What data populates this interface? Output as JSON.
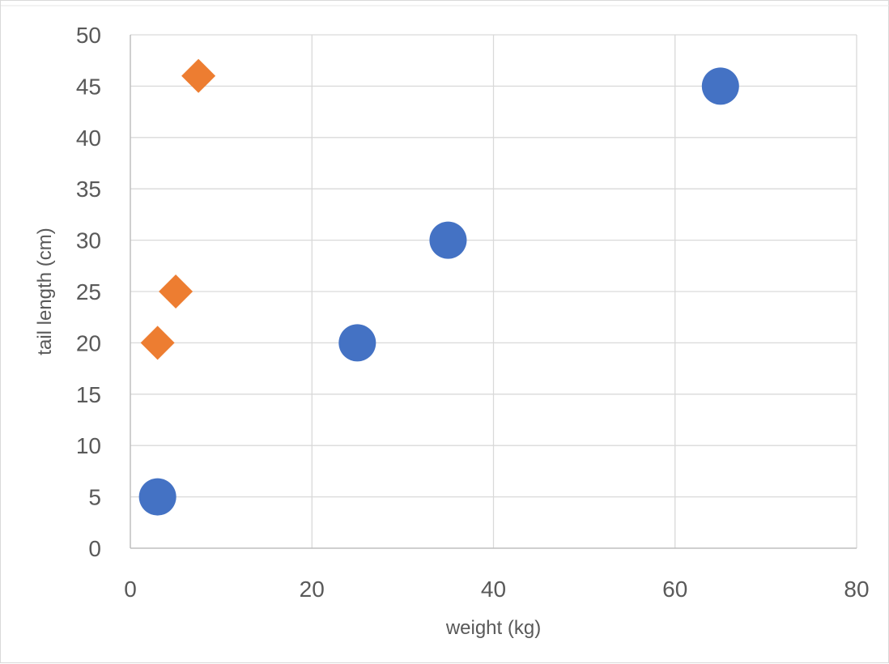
{
  "chart_data": {
    "type": "scatter",
    "title": "",
    "xlabel": "weight (kg)",
    "ylabel": "tail length (cm)",
    "xlim": [
      0,
      80
    ],
    "ylim": [
      0,
      50
    ],
    "xticks": [
      0,
      20,
      40,
      60,
      80
    ],
    "yticks": [
      0,
      5,
      10,
      15,
      20,
      25,
      30,
      35,
      40,
      45,
      50
    ],
    "grid": true,
    "legend": "none",
    "series": [
      {
        "marker": "circle",
        "color": "#4472C4",
        "points": [
          {
            "x": 3,
            "y": 5
          },
          {
            "x": 25,
            "y": 20
          },
          {
            "x": 35,
            "y": 30
          },
          {
            "x": 65,
            "y": 45
          }
        ]
      },
      {
        "marker": "diamond",
        "color": "#ED7D31",
        "points": [
          {
            "x": 3,
            "y": 20
          },
          {
            "x": 5,
            "y": 25
          },
          {
            "x": 7.5,
            "y": 46
          }
        ]
      }
    ]
  }
}
